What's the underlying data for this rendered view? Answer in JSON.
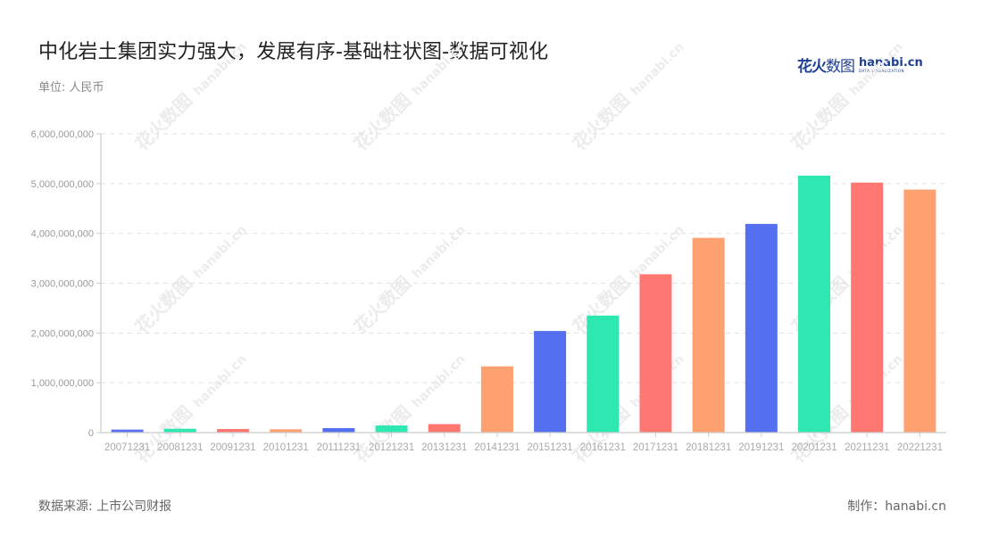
{
  "header": {
    "title": "中化岩土集团实力强大，发展有序-基础柱状图-数据可视化",
    "unit": "单位: 人民币"
  },
  "logo": {
    "cn": "花火",
    "cn_thin": "数图",
    "en": "hanabi.cn",
    "en_sub": "DATA VISUALIZATION"
  },
  "footer": {
    "source": "数据来源: 上市公司财报",
    "maker": "制作：hanabi.cn"
  },
  "watermark": {
    "cn": "花火数图",
    "en": "hanabi.cn"
  },
  "palette": [
    "#5470f0",
    "#2de8b0",
    "#ff7770",
    "#ffa070"
  ],
  "chart_data": {
    "type": "bar",
    "title": "中化岩土集团实力强大，发展有序-基础柱状图-数据可视化",
    "subtitle": "单位: 人民币",
    "xlabel": "",
    "ylabel": "",
    "ylim": [
      0,
      6000000000
    ],
    "yticks": [
      0,
      1000000000,
      2000000000,
      3000000000,
      4000000000,
      5000000000,
      6000000000
    ],
    "ytick_labels": [
      "0",
      "1,000,000,000",
      "2,000,000,000",
      "3,000,000,000",
      "4,000,000,000",
      "5,000,000,000",
      "6,000,000,000"
    ],
    "grid": true,
    "legend": "none",
    "categories": [
      "20071231",
      "20081231",
      "20091231",
      "20101231",
      "20111231",
      "20121231",
      "20131231",
      "20141231",
      "20151231",
      "20161231",
      "20171231",
      "20181231",
      "20191231",
      "20201231",
      "20211231",
      "20221231"
    ],
    "values": [
      60000000,
      77000000,
      72000000,
      66000000,
      90000000,
      143000000,
      170000000,
      1330000000,
      2040000000,
      2350000000,
      3180000000,
      3910000000,
      4190000000,
      5160000000,
      5020000000,
      4880000000
    ],
    "bar_colors": [
      "#5470f0",
      "#2de8b0",
      "#ff7770",
      "#ffa070",
      "#5470f0",
      "#2de8b0",
      "#ff7770",
      "#ffa070",
      "#5470f0",
      "#2de8b0",
      "#ff7770",
      "#ffa070",
      "#5470f0",
      "#2de8b0",
      "#ff7770",
      "#ffa070"
    ]
  }
}
